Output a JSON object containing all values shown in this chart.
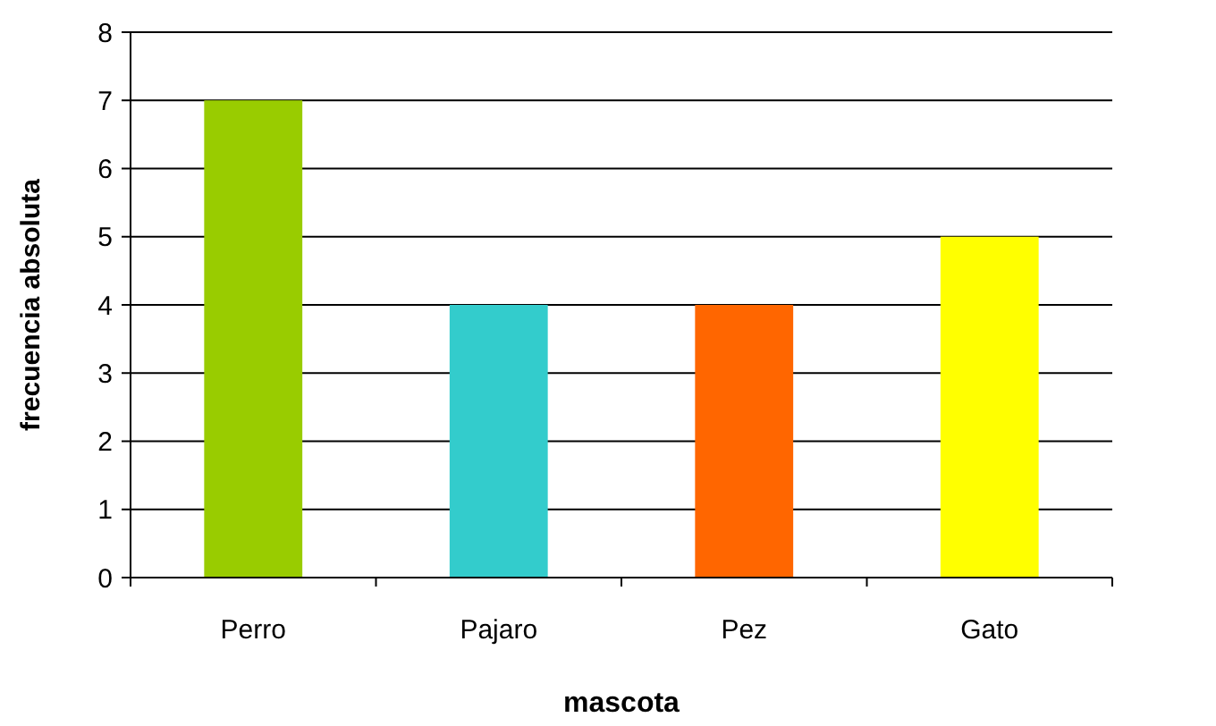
{
  "chart_data": {
    "type": "bar",
    "xlabel": "mascota",
    "ylabel": "frecuencia absoluta",
    "categories": [
      "Perro",
      "Pajaro",
      "Pez",
      "Gato"
    ],
    "values": [
      7,
      4,
      4,
      5
    ],
    "colors": [
      "#99cc00",
      "#33cccc",
      "#ff6600",
      "#ffff00"
    ],
    "ylim": [
      0,
      8
    ],
    "yticks": [
      0,
      1,
      2,
      3,
      4,
      5,
      6,
      7,
      8
    ],
    "grid": "y"
  }
}
